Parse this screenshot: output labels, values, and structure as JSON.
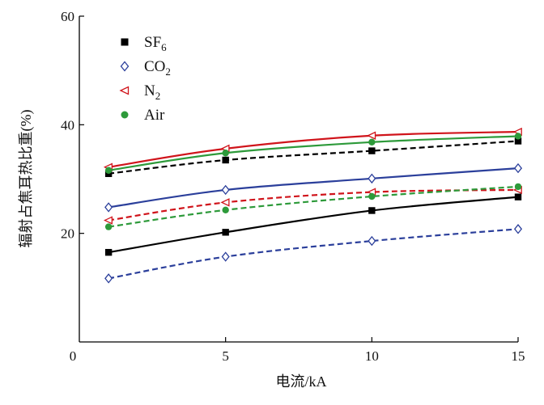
{
  "chart_data": {
    "type": "line",
    "xlabel": "电流/kA",
    "ylabel": "辐射占焦耳热比重(%)",
    "xlim": [
      0,
      15
    ],
    "ylim": [
      0,
      60
    ],
    "xticks": [
      0,
      5,
      10,
      15
    ],
    "yticks": [
      20,
      40,
      60
    ],
    "grid": false,
    "legend_position": "top-left",
    "legend": [
      {
        "name": "SF",
        "sub": "6",
        "marker": "filled-square",
        "color": "#000000"
      },
      {
        "name": "CO",
        "sub": "2",
        "marker": "open-diamond",
        "color": "#2b3f9b"
      },
      {
        "name": "N",
        "sub": "2",
        "marker": "open-triangle-left",
        "color": "#d0141b"
      },
      {
        "name": "Air",
        "sub": "",
        "marker": "filled-circle",
        "color": "#2d9a3a"
      }
    ],
    "series": [
      {
        "legend": 0,
        "style": "dashed",
        "x": [
          1,
          5,
          10,
          15
        ],
        "y": [
          31.0,
          33.5,
          35.2,
          37.0
        ]
      },
      {
        "legend": 0,
        "style": "solid",
        "x": [
          1,
          5,
          10,
          15
        ],
        "y": [
          16.5,
          20.2,
          24.2,
          26.7
        ]
      },
      {
        "legend": 1,
        "style": "solid",
        "x": [
          1,
          5,
          10,
          15
        ],
        "y": [
          24.8,
          28.0,
          30.1,
          32.0
        ]
      },
      {
        "legend": 1,
        "style": "dashed",
        "x": [
          1,
          5,
          10,
          15
        ],
        "y": [
          11.7,
          15.7,
          18.6,
          20.8
        ]
      },
      {
        "legend": 2,
        "style": "solid",
        "x": [
          1,
          5,
          10,
          15
        ],
        "y": [
          32.2,
          35.6,
          38.0,
          38.7
        ]
      },
      {
        "legend": 2,
        "style": "dashed",
        "x": [
          1,
          5,
          10,
          15
        ],
        "y": [
          22.4,
          25.7,
          27.6,
          28.0
        ]
      },
      {
        "legend": 3,
        "style": "solid",
        "x": [
          1,
          5,
          10,
          15
        ],
        "y": [
          31.6,
          34.8,
          36.8,
          37.9
        ]
      },
      {
        "legend": 3,
        "style": "dashed",
        "x": [
          1,
          5,
          10,
          15
        ],
        "y": [
          21.2,
          24.3,
          26.8,
          28.6
        ]
      }
    ]
  }
}
